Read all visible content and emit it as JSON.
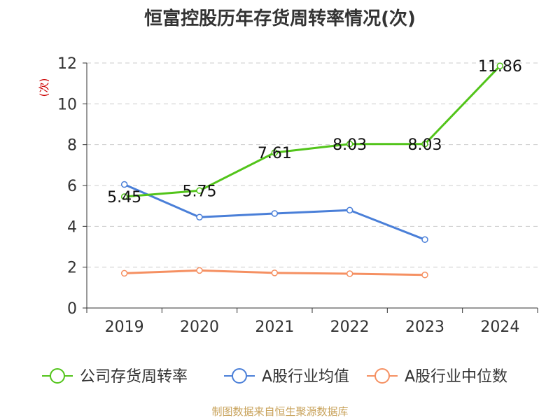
{
  "title": "恒富控股历年存货周转率情况(次)",
  "source": "制图数据来自恒生聚源数据库",
  "chart_data": {
    "type": "line",
    "title": "恒富控股历年存货周转率情况(次)",
    "ylabel": "(次)",
    "xlabel": "",
    "categories": [
      "2019",
      "2020",
      "2021",
      "2022",
      "2023",
      "2024"
    ],
    "ylim": [
      0,
      12
    ],
    "yticks": [
      0,
      2,
      4,
      6,
      8,
      10,
      12
    ],
    "grid": true,
    "legend_position": "bottom",
    "series": [
      {
        "name": "公司存货周转率",
        "color": "#52c41a",
        "values": [
          5.45,
          5.75,
          7.61,
          8.03,
          8.03,
          11.86
        ],
        "show_labels": true
      },
      {
        "name": "A股行业均值",
        "color": "#4a7fd8",
        "values": [
          6.05,
          4.45,
          4.63,
          4.79,
          3.35,
          null
        ],
        "show_labels": false
      },
      {
        "name": "A股行业中位数",
        "color": "#f59062",
        "values": [
          1.7,
          1.84,
          1.72,
          1.68,
          1.62,
          null
        ],
        "show_labels": false
      }
    ]
  }
}
